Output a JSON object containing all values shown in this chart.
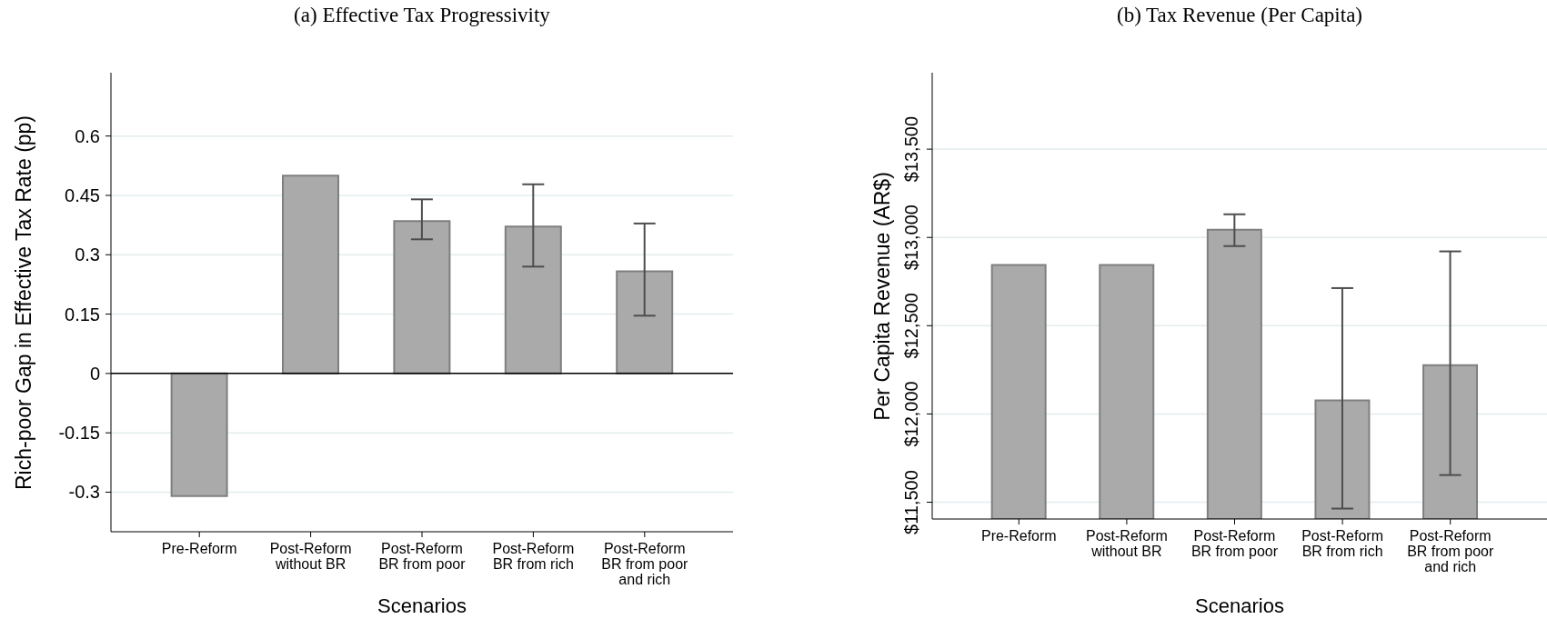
{
  "chart_data": [
    {
      "type": "bar",
      "title": "(a) Effective Tax Progressivity",
      "xlabel": "Scenarios",
      "ylabel": "Rich-poor Gap in Effective Tax Rate (pp)",
      "categories": [
        "Pre-Reform",
        "Post-Reform\nwithout BR",
        "Post-Reform\nBR from poor",
        "Post-Reform\nBR from rich",
        "Post-Reform\nBR from poor\nand rich"
      ],
      "values": [
        -0.31,
        0.5,
        0.385,
        0.371,
        0.258
      ],
      "errors": [
        null,
        null,
        [
          0.339,
          0.44
        ],
        [
          0.27,
          0.478
        ],
        [
          0.146,
          0.379
        ]
      ],
      "color": "#aaaaaa",
      "ylim": [
        -0.4,
        0.76
      ],
      "yticks": [
        -0.3,
        -0.15,
        0,
        0.15,
        0.3,
        0.45,
        0.6
      ],
      "grid": "y",
      "ref_lines": [
        {
          "axis": "y",
          "value": 0,
          "color": "#000000"
        }
      ]
    },
    {
      "type": "bar",
      "title": "(b) Tax Revenue (Per Capita)",
      "xlabel": "Scenarios",
      "ylabel": "Per Capita Revenue (AR$)",
      "categories": [
        "Pre-Reform",
        "Post-Reform\nwithout BR",
        "Post-Reform\nBR from poor",
        "Post-Reform\nBR from rich",
        "Post-Reform\nBR from poor\nand rich"
      ],
      "values": [
        12844,
        12844,
        13044,
        12077,
        12277
      ],
      "errors": [
        null,
        null,
        [
          12951,
          13131
        ],
        [
          11464,
          12713
        ],
        [
          11654,
          12921
        ]
      ],
      "color": "#aaaaaa",
      "ylim": [
        11405,
        13933
      ],
      "yticks": [
        {
          "value": 11500,
          "label": "$11,500"
        },
        {
          "value": 12000,
          "label": "$12,000"
        },
        {
          "value": 12500,
          "label": "$12,500"
        },
        {
          "value": 13000,
          "label": "$13,000"
        },
        {
          "value": 13500,
          "label": "$13,500"
        }
      ],
      "grid": "y"
    }
  ]
}
